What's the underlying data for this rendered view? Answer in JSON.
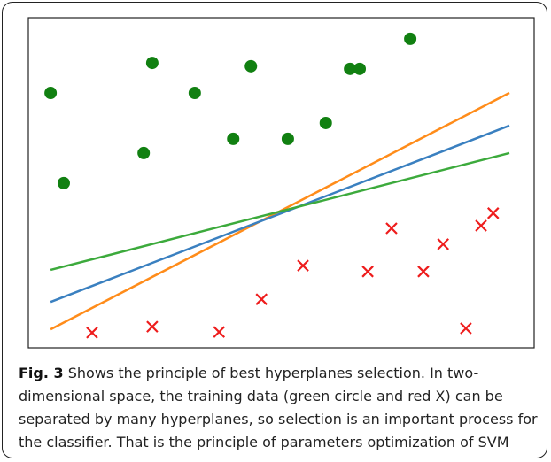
{
  "chart_data": {
    "type": "scatter",
    "xlim": [
      0,
      100
    ],
    "ylim": [
      0,
      100
    ],
    "series": [
      {
        "color": "#118011",
        "marker": "circle",
        "x": [
          4.4,
          7.0,
          24.5,
          22.8,
          32.9,
          44.0,
          40.5,
          51.3,
          58.8,
          63.6,
          65.5,
          75.5
        ],
        "values": [
          77.2,
          49.9,
          86.3,
          59.0,
          77.2,
          85.3,
          63.3,
          63.3,
          68.1,
          84.5,
          84.5,
          93.6
        ]
      },
      {
        "color": "#ee1c1c",
        "marker": "x",
        "x": [
          12.6,
          24.5,
          37.7,
          46.1,
          54.3,
          67.1,
          71.8,
          78.1,
          82.0,
          86.5,
          89.5,
          91.9
        ],
        "values": [
          4.6,
          6.4,
          4.8,
          14.7,
          24.9,
          23.1,
          36.2,
          23.1,
          31.4,
          5.9,
          37.0,
          40.8
        ]
      }
    ],
    "lines": [
      {
        "color": "#ff8c1a",
        "x": [
          4.4,
          95.1
        ],
        "values": [
          5.6,
          77.2
        ]
      },
      {
        "color": "#3a80c0",
        "x": [
          4.4,
          95.1
        ],
        "values": [
          13.9,
          67.3
        ]
      },
      {
        "color": "#3caa3c",
        "x": [
          4.4,
          95.1
        ],
        "values": [
          23.6,
          59.0
        ]
      }
    ]
  },
  "caption": {
    "label": "Fig. 3",
    "text": " Shows the principle of best hyperplanes selection. In two-dimensional space, the training data (green circle and red X) can be separated by many hyperplanes, so selection is an important process for the classifier. That is the principle of parameters optimization of SVM"
  }
}
